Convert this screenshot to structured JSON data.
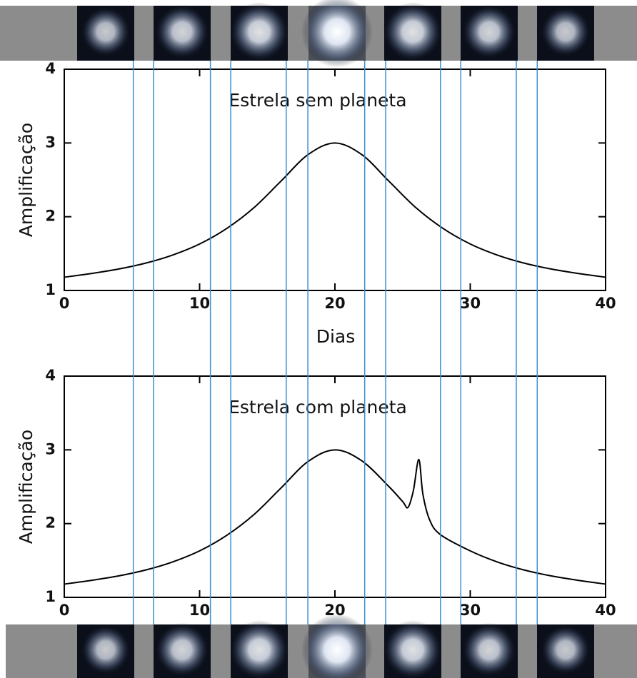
{
  "chart_data": [
    {
      "type": "line",
      "title": "Estrela sem planeta",
      "xlabel": "Dias",
      "ylabel": "Amplificação",
      "x": [
        0,
        2,
        4,
        6,
        8,
        10,
        12,
        14,
        16,
        18,
        20,
        22,
        24,
        26,
        28,
        30,
        32,
        34,
        36,
        38,
        40
      ],
      "series": [
        {
          "color": "#000000",
          "values": [
            1.18,
            1.23,
            1.29,
            1.37,
            1.48,
            1.63,
            1.84,
            2.12,
            2.48,
            2.84,
            3.0,
            2.84,
            2.48,
            2.12,
            1.84,
            1.63,
            1.48,
            1.37,
            1.29,
            1.23,
            1.18
          ]
        }
      ],
      "xlim": [
        0,
        40
      ],
      "ylim": [
        1,
        4
      ],
      "xticks": [
        0,
        10,
        20,
        30,
        40
      ],
      "yticks": [
        1,
        2,
        3,
        4
      ]
    },
    {
      "type": "line",
      "title": "Estrela com planeta",
      "ylabel": "Amplificação",
      "x": [
        0,
        2,
        4,
        6,
        8,
        10,
        12,
        14,
        16,
        18,
        20,
        22,
        24,
        25,
        25.4,
        25.8,
        26.2,
        26.5,
        27,
        27.8,
        30,
        32,
        34,
        36,
        38,
        40
      ],
      "series": [
        {
          "color": "#000000",
          "values": [
            1.18,
            1.23,
            1.29,
            1.37,
            1.48,
            1.63,
            1.84,
            2.12,
            2.48,
            2.84,
            3.0,
            2.85,
            2.5,
            2.3,
            2.22,
            2.45,
            2.87,
            2.4,
            2.05,
            1.85,
            1.63,
            1.48,
            1.37,
            1.29,
            1.23,
            1.18
          ]
        }
      ],
      "xlim": [
        0,
        40
      ],
      "ylim": [
        1,
        4
      ],
      "xticks": [
        0,
        10,
        20,
        30,
        40
      ],
      "yticks": [
        1,
        2,
        3,
        4
      ]
    }
  ],
  "time_markers": {
    "color": "#3a8fd0",
    "x": [
      5.1,
      6.6,
      10.8,
      12.3,
      16.4,
      18.0,
      22.2,
      23.75,
      27.8,
      29.3,
      33.4,
      34.95
    ]
  }
}
